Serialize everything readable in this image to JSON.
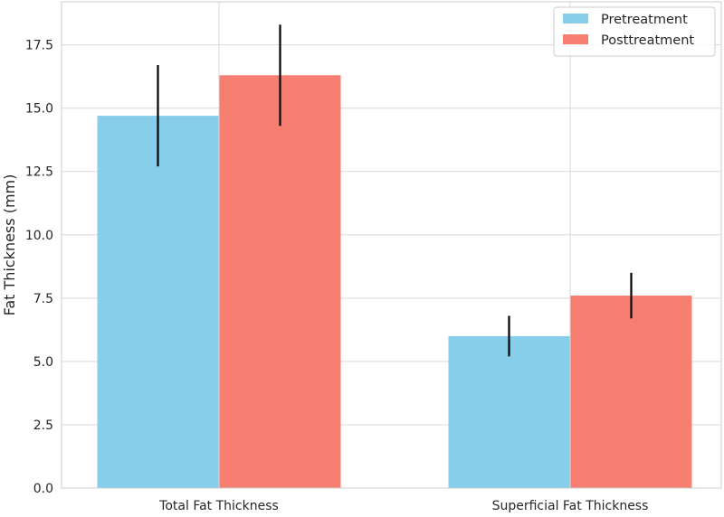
{
  "chart_data": {
    "type": "bar",
    "title": "",
    "xlabel": "",
    "ylabel": "Fat Thickness (mm)",
    "categories": [
      "Total Fat Thickness",
      "Superficial Fat Thickness"
    ],
    "series": [
      {
        "name": "Pretreatment",
        "values": [
          14.7,
          6.0
        ],
        "errors": [
          2.0,
          0.8
        ],
        "color": "#87CEEB"
      },
      {
        "name": "Posttreatment",
        "values": [
          16.3,
          7.6
        ],
        "errors": [
          2.0,
          0.9
        ],
        "color": "#F67F71"
      }
    ],
    "ylim": [
      0,
      19.2
    ],
    "yticks": [
      0.0,
      2.5,
      5.0,
      7.5,
      10.0,
      12.5,
      15.0,
      17.5
    ],
    "ytick_labels": [
      "0.0",
      "2.5",
      "5.0",
      "7.5",
      "10.0",
      "12.5",
      "15.0",
      "17.5"
    ],
    "grid": true,
    "legend_position": "top-right",
    "error_bar_color": "#000000"
  }
}
